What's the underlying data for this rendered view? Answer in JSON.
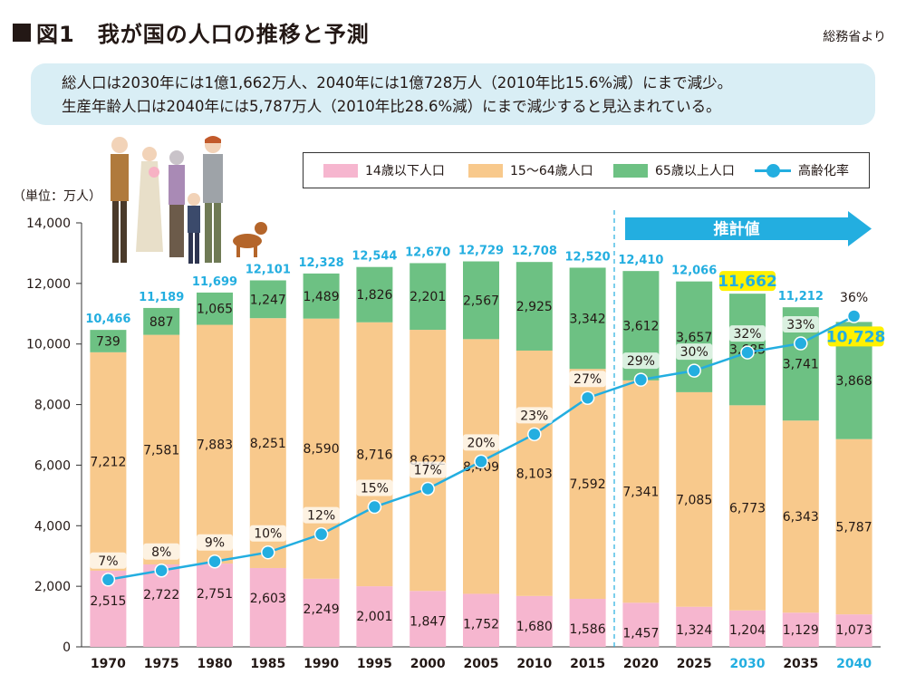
{
  "header": {
    "title": "図1　我が国の人口の推移と予測",
    "source": "総務省より"
  },
  "summary": {
    "line1": "総人口は2030年には1億1,662万人、2040年には1億728万人（2010年比15.6%減）にまで減少。",
    "line2": "生産年齢人口は2040年には5,787万人（2010年比28.6%減）にまで減少すると見込まれている。"
  },
  "colors": {
    "young": "#f6b6cf",
    "working": "#f8c98c",
    "elderly": "#6dc183",
    "ratio": "#23aee0",
    "total_label": "#23aee0",
    "highlight_bg": "#fff100",
    "projection_line": "#23aee0"
  },
  "chart_data": {
    "type": "bar",
    "stacked": true,
    "categories": [
      "1970",
      "1975",
      "1980",
      "1985",
      "1990",
      "1995",
      "2000",
      "2005",
      "2010",
      "2015",
      "2020",
      "2025",
      "2030",
      "2035",
      "2040"
    ],
    "highlighted_categories": [
      "2030",
      "2040"
    ],
    "ylabel": "（単位：万人）",
    "ylim": [
      0,
      14000
    ],
    "yticks": [
      "0",
      "2,000",
      "4,000",
      "6,000",
      "8,000",
      "10,000",
      "12,000",
      "14,000"
    ],
    "projection_label": "推計値",
    "projection_start": "2020",
    "series": [
      {
        "name": "14歳以下人口",
        "values": [
          2515,
          2722,
          2751,
          2603,
          2249,
          2001,
          1847,
          1752,
          1680,
          1586,
          1457,
          1324,
          1204,
          1129,
          1073
        ],
        "labels": [
          "2,515",
          "2,722",
          "2,751",
          "2,603",
          "2,249",
          "2,001",
          "1,847",
          "1,752",
          "1,680",
          "1,586",
          "1,457",
          "1,324",
          "1,204",
          "1,129",
          "1,073"
        ]
      },
      {
        "name": "15～64歳人口",
        "values": [
          7212,
          7581,
          7883,
          8251,
          8590,
          8716,
          8622,
          8409,
          8103,
          7592,
          7341,
          7085,
          6773,
          6343,
          5787
        ],
        "labels": [
          "7,212",
          "7,581",
          "7,883",
          "8,251",
          "8,590",
          "8,716",
          "8,622",
          "8,409",
          "8,103",
          "7,592",
          "7,341",
          "7,085",
          "6,773",
          "6,343",
          "5,787"
        ]
      },
      {
        "name": "65歳以上人口",
        "values": [
          739,
          887,
          1065,
          1247,
          1489,
          1826,
          2201,
          2567,
          2925,
          3342,
          3612,
          3657,
          3685,
          3741,
          3868
        ],
        "labels": [
          "739",
          "887",
          "1,065",
          "1,247",
          "1,489",
          "1,826",
          "2,201",
          "2,567",
          "2,925",
          "3,342",
          "3,612",
          "3,657",
          "3,685",
          "3,741",
          "3,868"
        ]
      }
    ],
    "totals": [
      10466,
      11189,
      11699,
      12101,
      12328,
      12544,
      12670,
      12729,
      12708,
      12520,
      12410,
      12066,
      11662,
      11212,
      10728
    ],
    "total_labels": [
      "10,466",
      "11,189",
      "11,699",
      "12,101",
      "12,328",
      "12,544",
      "12,670",
      "12,729",
      "12,708",
      "12,520",
      "12,410",
      "12,066",
      "11,662",
      "11,212",
      "10,728"
    ],
    "ratio_series": {
      "name": "高齢化率",
      "values": [
        7,
        8,
        9,
        10,
        12,
        15,
        17,
        20,
        23,
        27,
        29,
        30,
        32,
        33,
        36
      ],
      "labels": [
        "7%",
        "8%",
        "9%",
        "10%",
        "12%",
        "15%",
        "17%",
        "20%",
        "23%",
        "27%",
        "29%",
        "30%",
        "32%",
        "33%",
        "36%"
      ]
    }
  }
}
